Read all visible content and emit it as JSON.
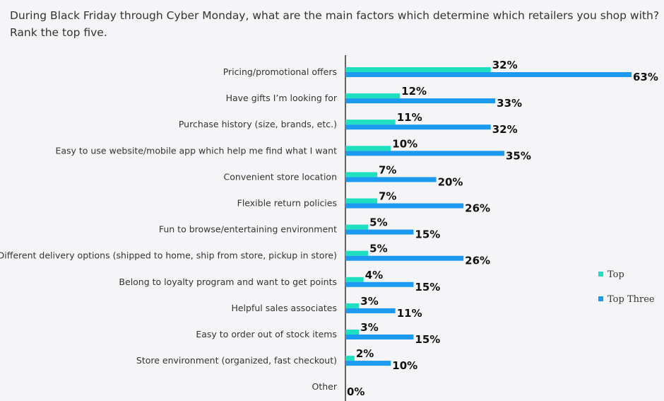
{
  "chart_data": {
    "type": "bar",
    "orientation": "horizontal",
    "title": "During Black Friday through Cyber Monday, what are the main factors which determine which retailers you shop with? Rank the top five.",
    "categories": [
      "Pricing/promotional offers",
      "Have gifts I’m looking for",
      "Purchase history (size, brands, etc.)",
      "Easy to use website/mobile app which help me find what I want",
      "Convenient store location",
      "Flexible return policies",
      "Fun to browse/entertaining environment",
      "Different delivery options (shipped to home, ship from store, pickup in store)",
      "Belong to loyalty program and want to get points",
      "Helpful sales  associates",
      "Easy to order out of stock items",
      "Store environment (organized, fast checkout)",
      "Other"
    ],
    "series": [
      {
        "name": "Top",
        "color": "#1ee0c0",
        "values": [
          32,
          12,
          11,
          10,
          7,
          7,
          5,
          5,
          4,
          3,
          3,
          2,
          null
        ]
      },
      {
        "name": "Top Three",
        "color": "#1b9af0",
        "values": [
          63,
          33,
          32,
          35,
          20,
          26,
          15,
          26,
          15,
          11,
          15,
          10,
          0
        ]
      }
    ],
    "unit": "%",
    "legend_position": "right",
    "grid": false
  }
}
